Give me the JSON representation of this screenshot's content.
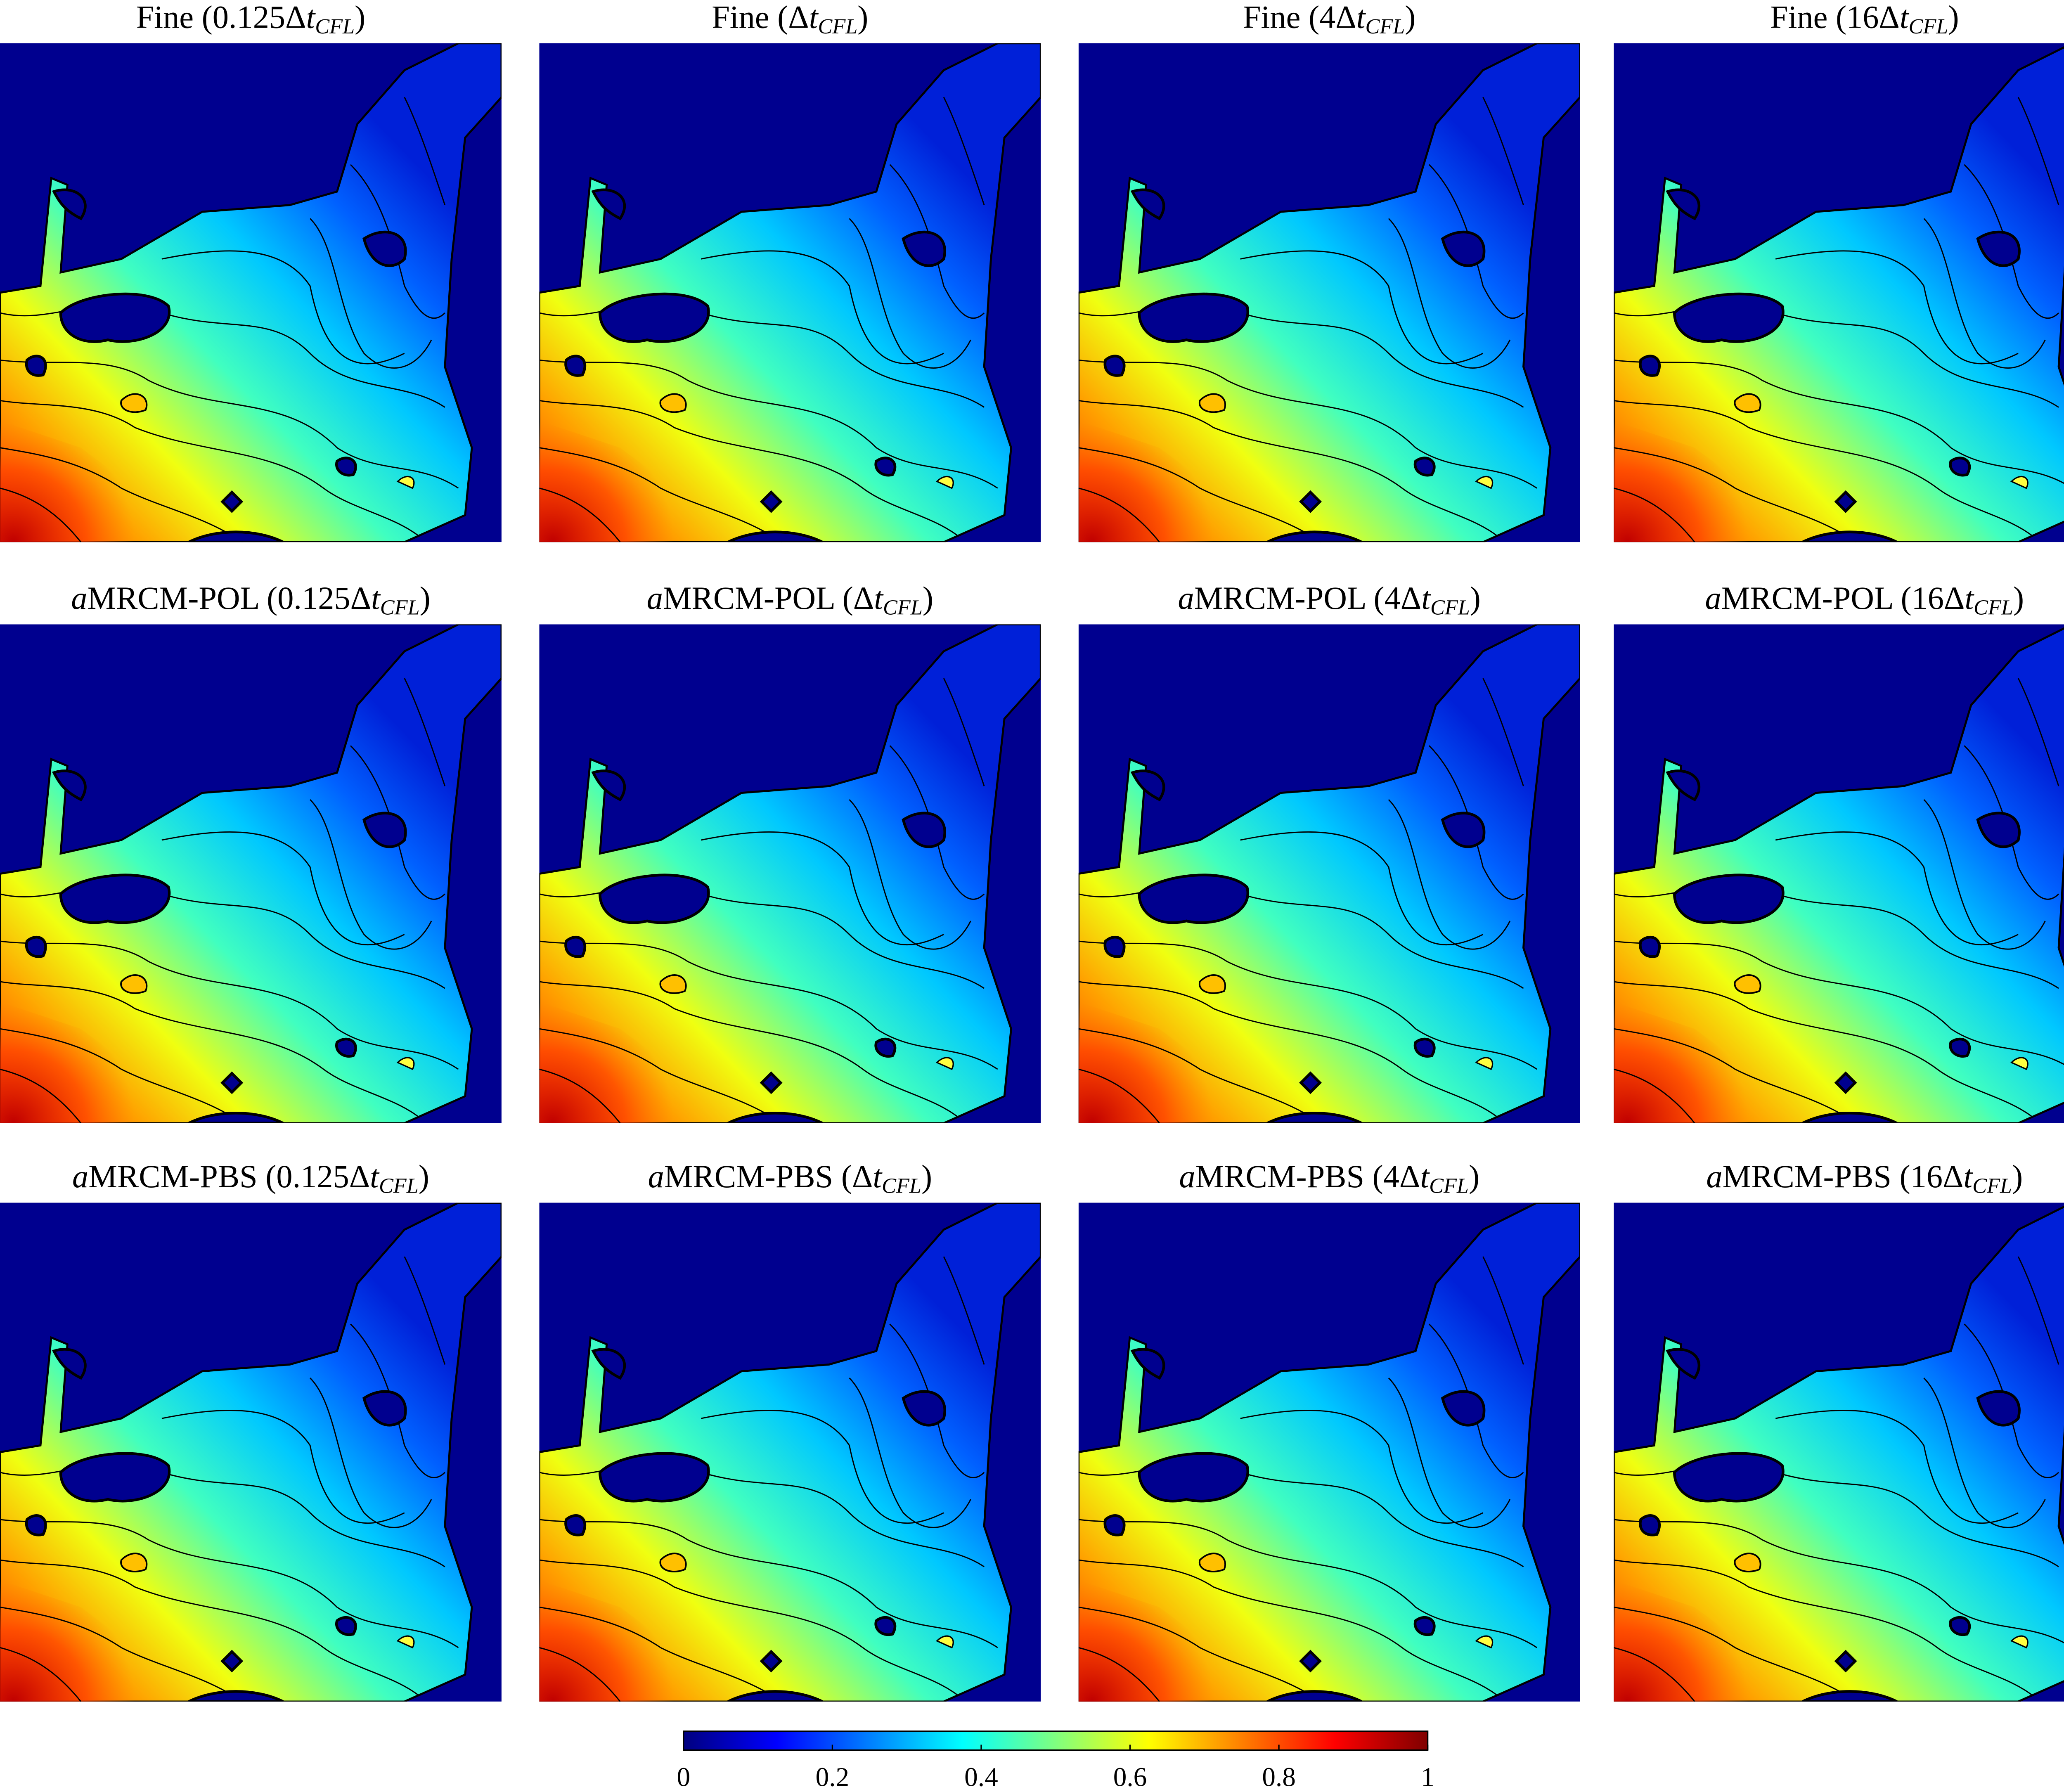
{
  "panels": [
    {
      "text": "Fine (0.125Δ",
      "italic": "t",
      "subscript": "CFL",
      "close": ")"
    },
    {
      "text": "Fine (Δ",
      "italic": "t",
      "subscript": "CFL",
      "close": ")"
    },
    {
      "text": "Fine (4Δ",
      "italic": "t",
      "subscript": "CFL",
      "close": ")"
    },
    {
      "text": "Fine (16Δ",
      "italic": "t",
      "subscript": "CFL",
      "close": ")"
    },
    {
      "italic_prefix": "a",
      "text": "MRCM-POL (0.125Δ",
      "italic": "t",
      "subscript": "CFL",
      "close": ")"
    },
    {
      "italic_prefix": "a",
      "text": "MRCM-POL (Δ",
      "italic": "t",
      "subscript": "CFL",
      "close": ")"
    },
    {
      "italic_prefix": "a",
      "text": "MRCM-POL (4Δ",
      "italic": "t",
      "subscript": "CFL",
      "close": ")"
    },
    {
      "italic_prefix": "a",
      "text": "MRCM-POL (16Δ",
      "italic": "t",
      "subscript": "CFL",
      "close": ")"
    },
    {
      "italic_prefix": "a",
      "text": "MRCM-PBS (0.125Δ",
      "italic": "t",
      "subscript": "CFL",
      "close": ")"
    },
    {
      "italic_prefix": "a",
      "text": "MRCM-PBS (Δ",
      "italic": "t",
      "subscript": "CFL",
      "close": ")"
    },
    {
      "italic_prefix": "a",
      "text": "MRCM-PBS (4Δ",
      "italic": "t",
      "subscript": "CFL",
      "close": ")"
    },
    {
      "italic_prefix": "a",
      "text": "MRCM-PBS (16Δ",
      "italic": "t",
      "subscript": "CFL",
      "close": ")"
    }
  ],
  "chart_data": {
    "type": "colorbar",
    "colormap": "jet",
    "xlim": [
      0,
      1
    ],
    "xticks": [
      0,
      0.2,
      0.4,
      0.6,
      0.8,
      1
    ]
  }
}
